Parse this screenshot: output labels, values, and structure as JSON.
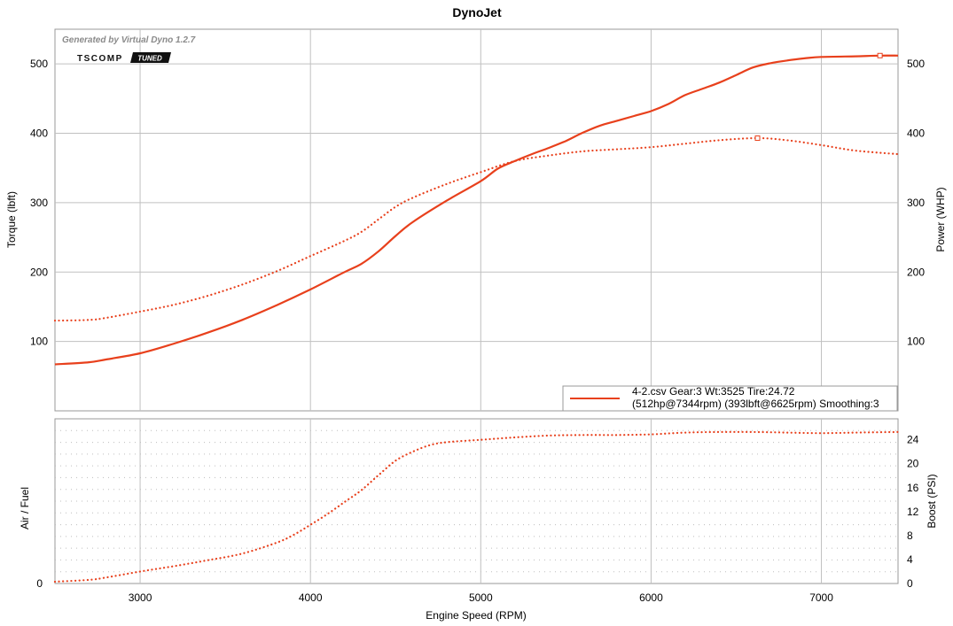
{
  "header": {
    "title": "DynoJet",
    "generated_by": "Generated by Virtual Dyno 1.2.7",
    "logo_left": "TSCOMP",
    "logo_right": "TUNED"
  },
  "colors": {
    "series": "#e8401c",
    "major_grid": "#c0c0c0",
    "minor_grid": "#bdbdbd",
    "logo_dark": "#111111"
  },
  "chart_data": [
    {
      "type": "line",
      "panel": "top",
      "xlabel": "Engine Speed (RPM)",
      "ylabel_left": "Torque (lbft)",
      "ylabel_right": "Power (WHP)",
      "xlim": [
        2500,
        7450
      ],
      "ylim": [
        0,
        550
      ],
      "x_ticks": [
        3000,
        4000,
        5000,
        6000,
        7000
      ],
      "y_ticks_left": [
        100,
        200,
        300,
        400,
        500
      ],
      "y_ticks_right": [
        100,
        200,
        300,
        400,
        500
      ],
      "grid": true,
      "legend": {
        "placement": "bottom-right",
        "line1": "4-2.csv Gear:3 Wt:3525 Tire:24.72",
        "line2": "(512hp@7344rpm) (393lbft@6625rpm) Smoothing:3"
      },
      "series": [
        {
          "style": "solid",
          "axis": "right",
          "marker": [
            7344,
            512
          ],
          "x": [
            2500,
            2700,
            2800,
            3000,
            3200,
            3400,
            3600,
            3800,
            4000,
            4200,
            4300,
            4400,
            4500,
            4600,
            4800,
            5000,
            5100,
            5200,
            5300,
            5400,
            5500,
            5600,
            5700,
            5800,
            5900,
            6000,
            6100,
            6200,
            6300,
            6400,
            6500,
            6600,
            6700,
            6800,
            6900,
            7000,
            7200,
            7344,
            7450
          ],
          "y": [
            67,
            70,
            74,
            83,
            97,
            113,
            131,
            152,
            175,
            200,
            212,
            230,
            252,
            272,
            303,
            331,
            349,
            360,
            370,
            379,
            389,
            401,
            411,
            418,
            425,
            432,
            442,
            455,
            464,
            473,
            484,
            495,
            501,
            505,
            508,
            510,
            511,
            512,
            512
          ]
        },
        {
          "style": "dotted",
          "axis": "left",
          "marker": [
            6625,
            393
          ],
          "x": [
            2500,
            2700,
            2800,
            3000,
            3200,
            3400,
            3600,
            3800,
            4000,
            4200,
            4300,
            4400,
            4500,
            4600,
            4800,
            5000,
            5200,
            5400,
            5600,
            5800,
            6000,
            6200,
            6400,
            6625,
            6800,
            7000,
            7200,
            7450
          ],
          "y": [
            130,
            131,
            134,
            143,
            153,
            166,
            182,
            201,
            223,
            245,
            258,
            276,
            294,
            307,
            327,
            344,
            360,
            368,
            374,
            377,
            380,
            385,
            390,
            393,
            390,
            383,
            375,
            370
          ]
        }
      ]
    },
    {
      "type": "line",
      "panel": "bottom",
      "xlabel": "Engine Speed (RPM)",
      "ylabel_left": "Air / Fuel",
      "ylabel_right": "Boost (PSI)",
      "xlim": [
        2500,
        7450
      ],
      "ylim": [
        0,
        27.5
      ],
      "x_ticks": [
        3000,
        4000,
        5000,
        6000,
        7000
      ],
      "y_ticks_left": [
        0
      ],
      "y_ticks_right": [
        0,
        4,
        8,
        12,
        16,
        20,
        24
      ],
      "grid": true,
      "series": [
        {
          "style": "dotted",
          "axis": "right",
          "x": [
            2500,
            2700,
            2800,
            3000,
            3200,
            3400,
            3600,
            3800,
            3900,
            4000,
            4100,
            4200,
            4300,
            4400,
            4500,
            4600,
            4700,
            4800,
            5000,
            5200,
            5400,
            5600,
            5800,
            6000,
            6200,
            6400,
            6600,
            6800,
            7000,
            7200,
            7450
          ],
          "y": [
            0.3,
            0.6,
            1.0,
            2.0,
            2.9,
            3.9,
            5.0,
            6.8,
            8.1,
            9.8,
            11.6,
            13.6,
            15.6,
            18.1,
            20.5,
            22.0,
            23.1,
            23.6,
            24.0,
            24.4,
            24.7,
            24.8,
            24.8,
            24.9,
            25.2,
            25.3,
            25.3,
            25.2,
            25.1,
            25.2,
            25.3
          ]
        }
      ]
    }
  ]
}
